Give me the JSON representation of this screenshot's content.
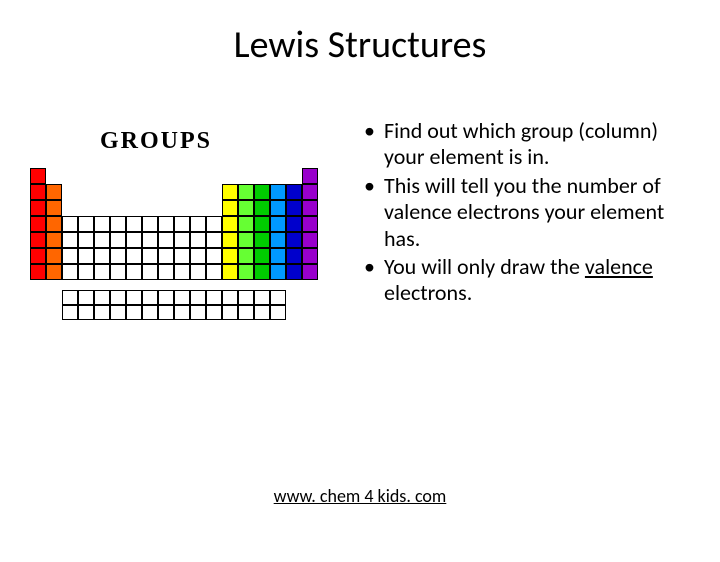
{
  "title": "Lewis Structures",
  "groups_label": "GROUPS",
  "bullets": [
    {
      "pre": "Find out which group (column) your element is in.",
      "u": "",
      "post": ""
    },
    {
      "pre": "This will tell you the number of valence electrons your element has.",
      "u": "",
      "post": ""
    },
    {
      "pre": "You will only draw the ",
      "u": "valence",
      "post": " electrons."
    }
  ],
  "link_text": "www. chem 4 kids. com",
  "periodic": {
    "cell_size": 16,
    "main_colors": {
      "g1": "#ff0000",
      "g2": "#ff6600",
      "d_block": "#ffffff",
      "g13": "#ffff00",
      "g14": "#66ff33",
      "g15": "#00cc00",
      "g16": "#0099ff",
      "g17": "#0000cc",
      "g18": "#9900cc"
    },
    "rows_main": 7,
    "lanth_rows": 2,
    "lanth_cols": 14
  }
}
